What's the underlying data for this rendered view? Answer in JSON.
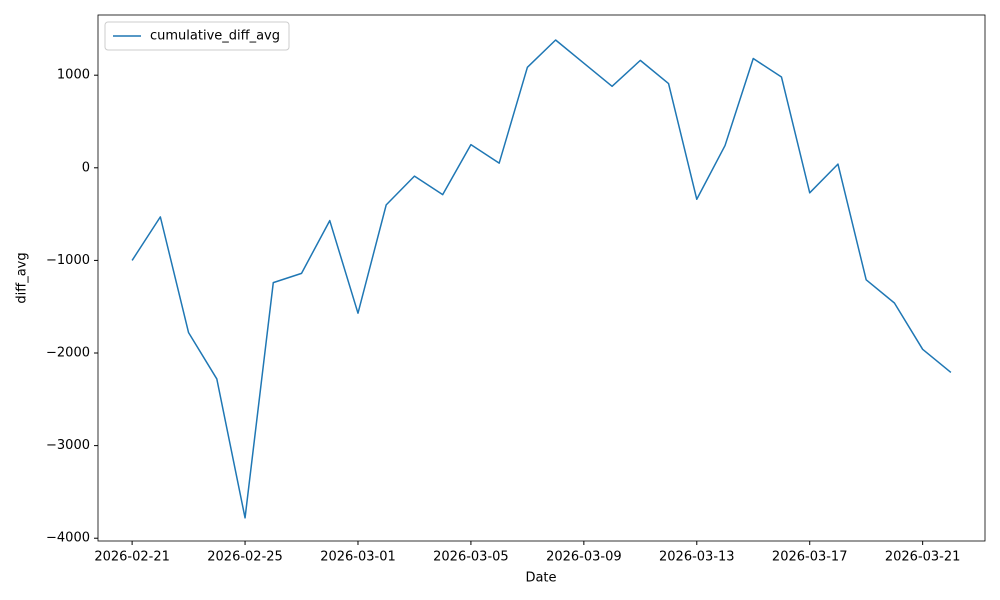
{
  "chart_data": {
    "type": "line",
    "x_label": "Date",
    "y_label": "diff_avg",
    "x": [
      "2026-02-21",
      "2026-02-22",
      "2026-02-23",
      "2026-02-24",
      "2026-02-25",
      "2026-02-26",
      "2026-02-27",
      "2026-02-28",
      "2026-03-01",
      "2026-03-02",
      "2026-03-03",
      "2026-03-04",
      "2026-03-05",
      "2026-03-06",
      "2026-03-07",
      "2026-03-08",
      "2026-03-09",
      "2026-03-10",
      "2026-03-11",
      "2026-03-12",
      "2026-03-13",
      "2026-03-14",
      "2026-03-15",
      "2026-03-16",
      "2026-03-17",
      "2026-03-18",
      "2026-03-19",
      "2026-03-20",
      "2026-03-21",
      "2026-03-22"
    ],
    "series": [
      {
        "name": "cumulative_diff_avg",
        "color": "#1f77b4",
        "values": [
          -1000,
          -530,
          -1780,
          -2280,
          -3780,
          -1240,
          -1140,
          -570,
          -1570,
          -400,
          -90,
          -290,
          250,
          50,
          1085,
          1380,
          1130,
          880,
          1160,
          910,
          -340,
          240,
          1180,
          980,
          -270,
          40,
          -1210,
          -1460,
          -1960,
          -2210
        ]
      }
    ],
    "xlim": [
      "2026-02-19T19:00",
      "2026-03-23T05:00"
    ],
    "xticks": [
      "2026-02-21",
      "2026-02-25",
      "2026-03-01",
      "2026-03-05",
      "2026-03-09",
      "2026-03-13",
      "2026-03-17",
      "2026-03-21"
    ],
    "ylim": [
      -4030,
      1650
    ],
    "yticks": [
      {
        "value": -4000,
        "label": "−4000"
      },
      {
        "value": -3000,
        "label": "−3000"
      },
      {
        "value": -2000,
        "label": "−2000"
      },
      {
        "value": -1000,
        "label": "−1000"
      },
      0,
      1000
    ],
    "grid": false,
    "legend": "upper left"
  }
}
